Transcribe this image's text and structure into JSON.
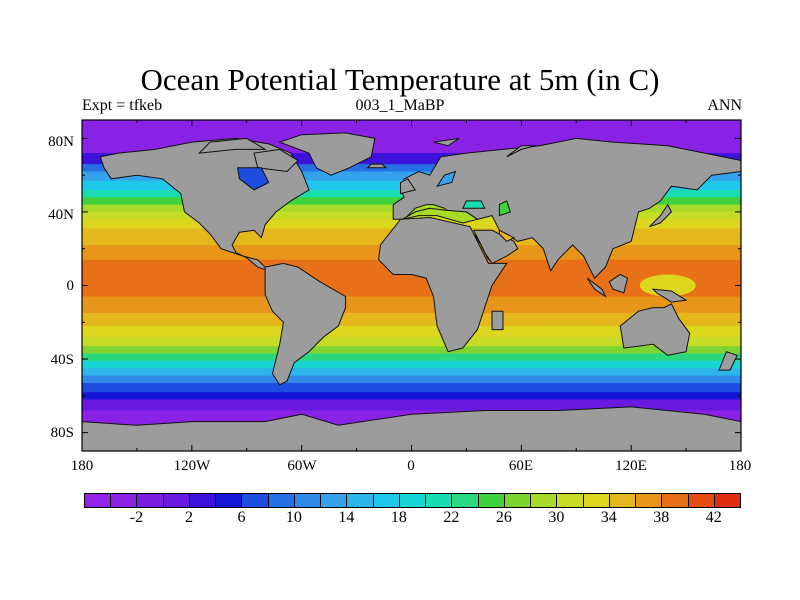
{
  "title": "Ocean Potential Temperature at 5m (in C)",
  "subtitle_left": "Expt = tfkeb",
  "subtitle_center": "003_1_MaBP",
  "subtitle_right": "ANN",
  "lat_ticks": [
    "80N",
    "40N",
    "0",
    "40S",
    "80S"
  ],
  "lat_values": [
    80,
    40,
    0,
    -40,
    -80
  ],
  "lon_ticks": [
    "180",
    "120W",
    "60W",
    "0",
    "60E",
    "120E",
    "180"
  ],
  "lon_values": [
    -180,
    -120,
    -60,
    0,
    60,
    120,
    180
  ],
  "map": {
    "lon_range": [
      -180,
      180
    ],
    "lat_range": [
      -90,
      90
    ],
    "land_color": "#9c9c9c",
    "colorbar_levels": [
      -6,
      -4,
      -2,
      0,
      2,
      4,
      6,
      8,
      10,
      12,
      14,
      16,
      18,
      20,
      22,
      24,
      26,
      28,
      30,
      32,
      34,
      36,
      38,
      40,
      42,
      44
    ],
    "colorbar_colors": [
      "#9122ea",
      "#8a22e6",
      "#7a1ee0",
      "#6a1ae0",
      "#3c12dc",
      "#1616d6",
      "#1d4ee0",
      "#2670e6",
      "#2f8ae8",
      "#35a2ec",
      "#2cb6ec",
      "#1fc8ea",
      "#18d6d6",
      "#18dcb2",
      "#2ad880",
      "#3ed23c",
      "#7ed430",
      "#a8da2a",
      "#c6dc26",
      "#dcd61e",
      "#e4b81c",
      "#e8961a",
      "#e87018",
      "#e44c14",
      "#e02c12"
    ],
    "colorbar_labels": [
      "-2",
      "2",
      "6",
      "10",
      "14",
      "18",
      "22",
      "26",
      "30",
      "34",
      "38",
      "42"
    ]
  }
}
